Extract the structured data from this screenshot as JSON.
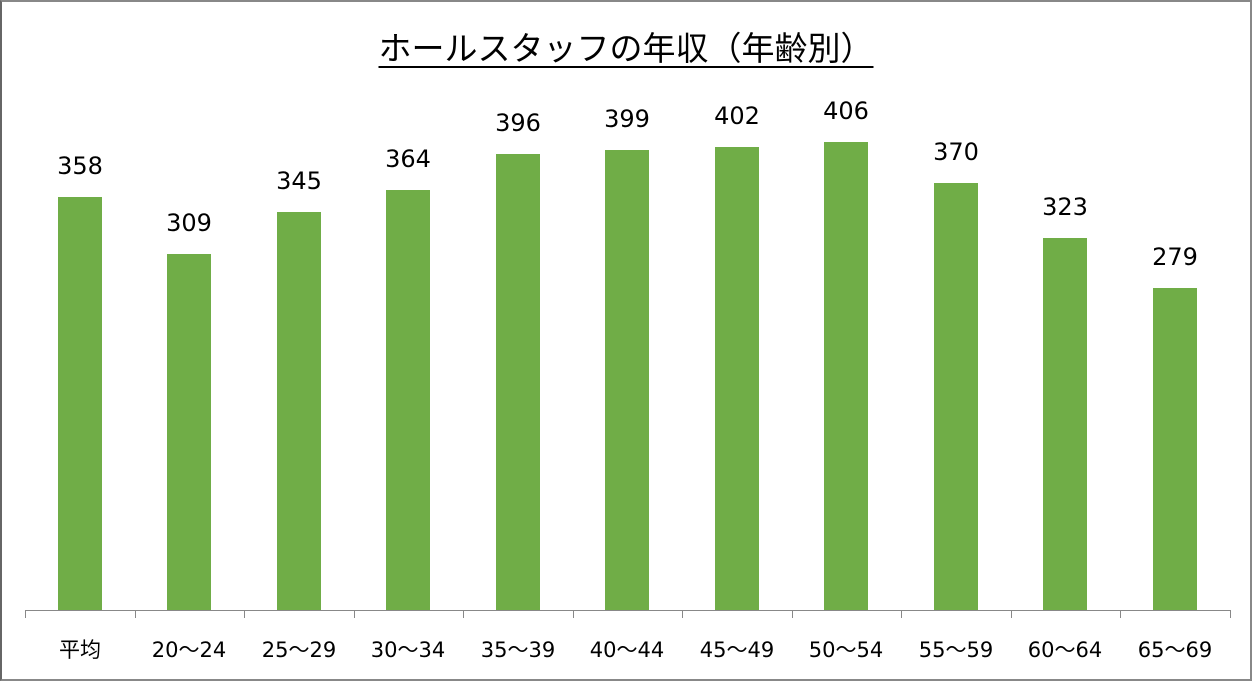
{
  "chart_data": {
    "type": "bar",
    "title": "ホールスタッフの年収（年齢別）",
    "xlabel": "",
    "ylabel": "",
    "categories": [
      "平均",
      "20〜24",
      "25〜29",
      "30〜34",
      "35〜39",
      "40〜44",
      "45〜49",
      "50〜54",
      "55〜59",
      "60〜64",
      "65〜69"
    ],
    "values": [
      358,
      309,
      345,
      364,
      396,
      399,
      402,
      406,
      370,
      323,
      279
    ],
    "ylim": [
      0,
      406
    ],
    "grid": false,
    "legend": null,
    "bar_color": "#70ad47",
    "data_labels": true
  }
}
